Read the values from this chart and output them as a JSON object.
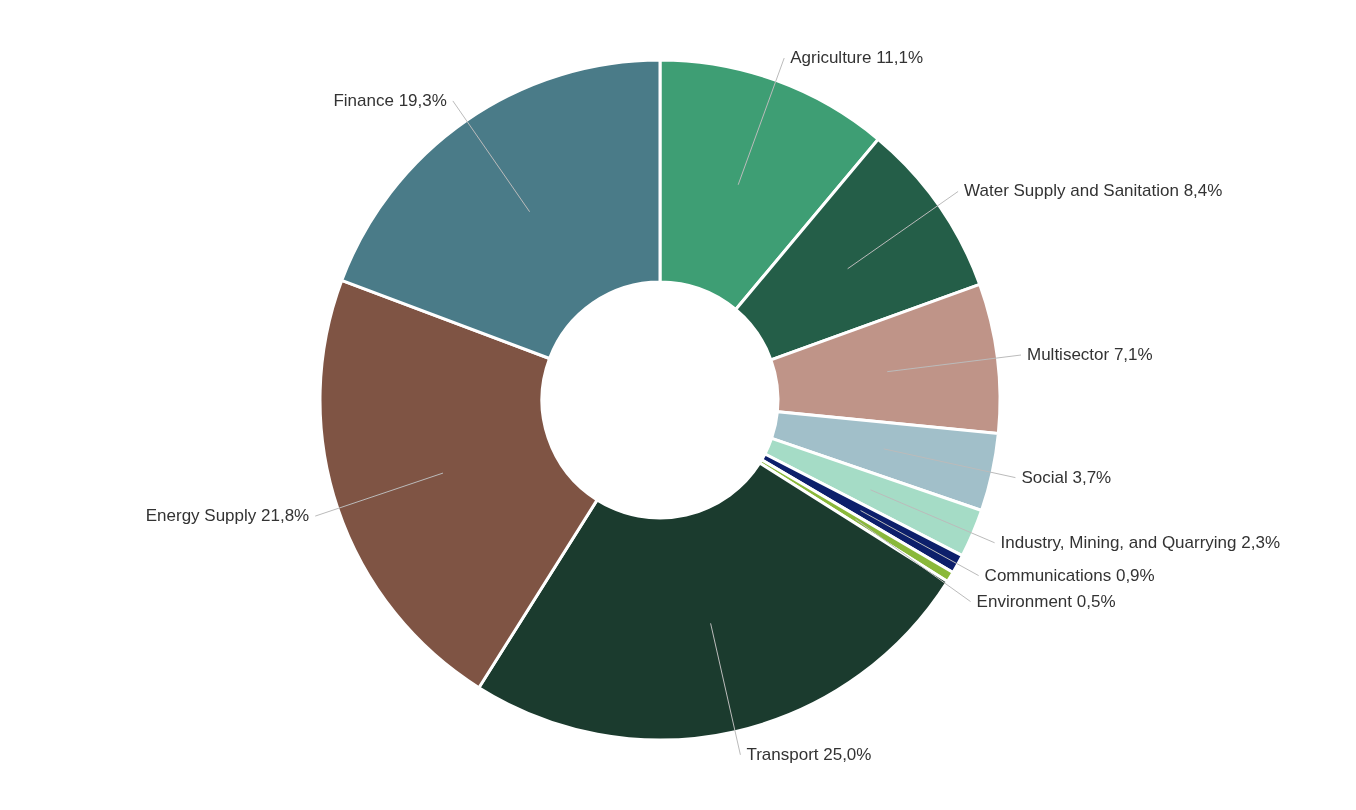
{
  "chart_data": {
    "type": "donut",
    "categories": [
      "Agriculture",
      "Water Supply and Sanitation",
      "Multisector",
      "Social",
      "Industry, Mining, and Quarrying",
      "Communications",
      "Environment",
      "Transport",
      "Energy Supply",
      "Finance"
    ],
    "values": [
      11.1,
      8.4,
      7.1,
      3.7,
      2.3,
      0.9,
      0.5,
      25.0,
      21.8,
      19.3
    ],
    "value_labels": [
      "11,1%",
      "8,4%",
      "7,1%",
      "3,7%",
      "2,3%",
      "0,9%",
      "0,5%",
      "25,0%",
      "21,8%",
      "19,3%"
    ],
    "colors": [
      "#3e9e74",
      "#245e48",
      "#bf9488",
      "#a1bfc9",
      "#a5dcc6",
      "#0d1f6b",
      "#8ab83a",
      "#1b3b2e",
      "#7f5444",
      "#4a7b88"
    ]
  }
}
